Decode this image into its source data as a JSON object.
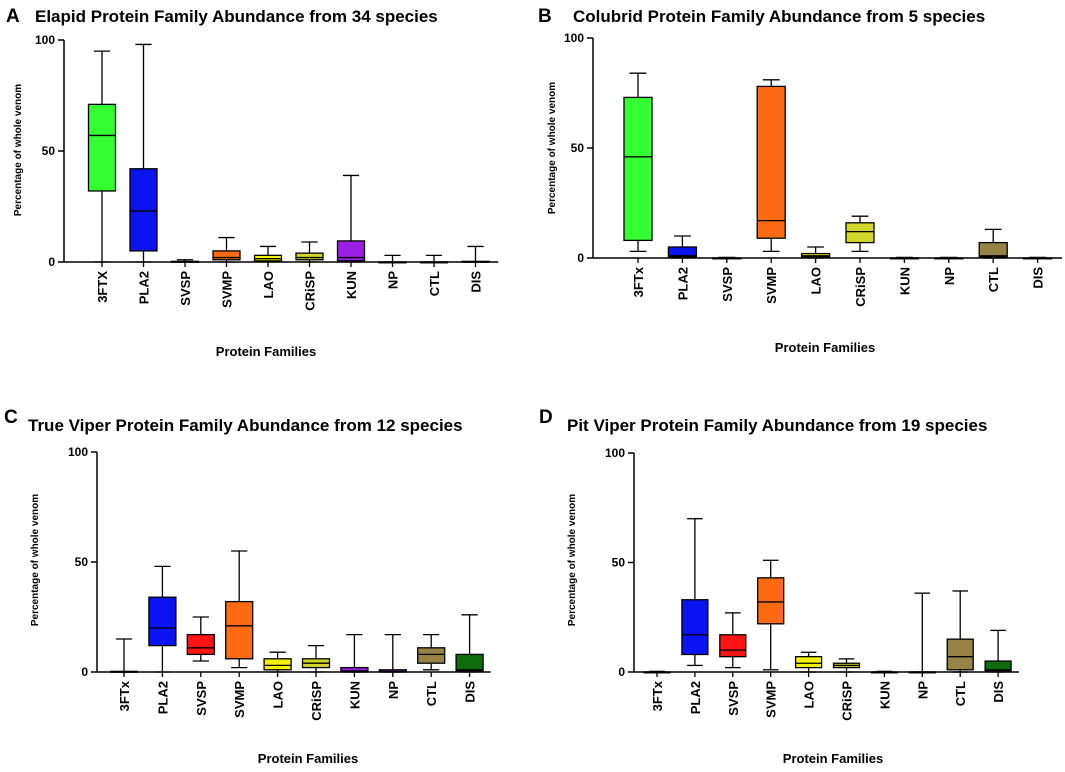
{
  "chart_data": [
    {
      "type": "box",
      "panel_letter": "A",
      "title": "Elapid Protein Family Abundance from 34 species",
      "xlabel": "Protein Families",
      "ylabel": "Percentage of whole venom",
      "ylim": [
        0,
        100
      ],
      "yticks": [
        0,
        50,
        100
      ],
      "categories": [
        "3FTX",
        "PLA2",
        "SVSP",
        "SVMP",
        "LAO",
        "CRiSP",
        "KUN",
        "NP",
        "CTL",
        "DIS"
      ],
      "colors": [
        "#33ff33",
        "#0a14f0",
        "#0a14f0",
        "#ff6a12",
        "#f4f20c",
        "#d2d62a",
        "#9b1fe2",
        "#9b1fe2",
        "#968447",
        "#0d6b0d"
      ],
      "boxes": [
        {
          "min": 0,
          "q1": 32,
          "median": 57,
          "q3": 71,
          "max": 95
        },
        {
          "min": 0,
          "q1": 5,
          "median": 23,
          "q3": 42,
          "max": 98
        },
        {
          "min": 0,
          "q1": 0,
          "median": 0,
          "q3": 0.3,
          "max": 1
        },
        {
          "min": 0,
          "q1": 1,
          "median": 2,
          "q3": 5,
          "max": 11
        },
        {
          "min": 0,
          "q1": 0.5,
          "median": 1.5,
          "q3": 3,
          "max": 7
        },
        {
          "min": 0,
          "q1": 1,
          "median": 2,
          "q3": 4,
          "max": 9
        },
        {
          "min": 0,
          "q1": 0.5,
          "median": 2,
          "q3": 9.5,
          "max": 39
        },
        {
          "min": 0,
          "q1": 0,
          "median": 0,
          "q3": 0,
          "max": 3
        },
        {
          "min": 0,
          "q1": 0,
          "median": 0,
          "q3": 0,
          "max": 3
        },
        {
          "min": 0,
          "q1": 0,
          "median": 0,
          "q3": 0.3,
          "max": 7
        }
      ]
    },
    {
      "type": "box",
      "panel_letter": "B",
      "title": "Colubrid Protein Family Abundance from 5 species",
      "xlabel": "Protein Families",
      "ylabel": "Percentage of whole venom",
      "ylim": [
        0,
        100
      ],
      "yticks": [
        0,
        50,
        100
      ],
      "categories": [
        "3FTx",
        "PLA2",
        "SVSP",
        "SVMP",
        "LAO",
        "CRiSP",
        "KUN",
        "NP",
        "CTL",
        "DIS"
      ],
      "colors": [
        "#33ff33",
        "#0a14f0",
        "#0a14f0",
        "#ff6a12",
        "#f4f20c",
        "#d2d62a",
        "#9b1fe2",
        "#9b1fe2",
        "#968447",
        "#0d6b0d"
      ],
      "boxes": [
        {
          "min": 3,
          "q1": 8,
          "median": 46,
          "q3": 73,
          "max": 84
        },
        {
          "min": 0,
          "q1": 0.5,
          "median": 1,
          "q3": 5,
          "max": 10
        },
        {
          "min": 0,
          "q1": 0,
          "median": 0,
          "q3": 0,
          "max": 0.3
        },
        {
          "min": 3,
          "q1": 9,
          "median": 17,
          "q3": 78,
          "max": 81
        },
        {
          "min": 0,
          "q1": 0.5,
          "median": 1,
          "q3": 2,
          "max": 5
        },
        {
          "min": 3,
          "q1": 7,
          "median": 12,
          "q3": 16,
          "max": 19
        },
        {
          "min": 0,
          "q1": 0,
          "median": 0,
          "q3": 0,
          "max": 0.3
        },
        {
          "min": 0,
          "q1": 0,
          "median": 0,
          "q3": 0,
          "max": 0.3
        },
        {
          "min": 0,
          "q1": 0.5,
          "median": 1,
          "q3": 7,
          "max": 13
        },
        {
          "min": 0,
          "q1": 0,
          "median": 0,
          "q3": 0,
          "max": 0.3
        }
      ]
    },
    {
      "type": "box",
      "panel_letter": "C",
      "title": "True Viper Protein Family Abundance from 12 species",
      "xlabel": "Protein Families",
      "ylabel": "Percentage of whole venom",
      "ylim": [
        0,
        100
      ],
      "yticks": [
        0,
        50,
        100
      ],
      "categories": [
        "3FTx",
        "PLA2",
        "SVSP",
        "SVMP",
        "LAO",
        "CRiSP",
        "KUN",
        "NP",
        "CTL",
        "DIS"
      ],
      "colors": [
        "#33ff33",
        "#0a14f0",
        "#ff1414",
        "#ff6a12",
        "#f4f20c",
        "#d2d62a",
        "#9b1fe2",
        "#9b1fe2",
        "#968447",
        "#0d6b0d"
      ],
      "boxes": [
        {
          "min": 0,
          "q1": 0,
          "median": 0,
          "q3": 0.3,
          "max": 15
        },
        {
          "min": 0,
          "q1": 12,
          "median": 20,
          "q3": 34,
          "max": 48
        },
        {
          "min": 5,
          "q1": 8,
          "median": 11,
          "q3": 17,
          "max": 25
        },
        {
          "min": 2,
          "q1": 6,
          "median": 21,
          "q3": 32,
          "max": 55
        },
        {
          "min": 0,
          "q1": 1,
          "median": 3,
          "q3": 6,
          "max": 9
        },
        {
          "min": 0,
          "q1": 2,
          "median": 4,
          "q3": 6,
          "max": 12
        },
        {
          "min": 0,
          "q1": 0,
          "median": 0.5,
          "q3": 2,
          "max": 17
        },
        {
          "min": 0,
          "q1": 0,
          "median": 0.3,
          "q3": 1,
          "max": 17
        },
        {
          "min": 1,
          "q1": 4,
          "median": 8,
          "q3": 11,
          "max": 17
        },
        {
          "min": 0,
          "q1": 0.5,
          "median": 1,
          "q3": 8,
          "max": 26
        }
      ]
    },
    {
      "type": "box",
      "panel_letter": "D",
      "title": "Pit Viper Protein Family Abundance from 19 species",
      "xlabel": "Protein Families",
      "ylabel": "Percentage of whole venom",
      "ylim": [
        0,
        100
      ],
      "yticks": [
        0,
        50,
        100
      ],
      "categories": [
        "3FTx",
        "PLA2",
        "SVSP",
        "SVMP",
        "LAO",
        "CRiSP",
        "KUN",
        "NP",
        "CTL",
        "DIS"
      ],
      "colors": [
        "#33ff33",
        "#0a14f0",
        "#ff1414",
        "#ff6a12",
        "#f4f20c",
        "#d2d62a",
        "#9b1fe2",
        "#9b1fe2",
        "#968447",
        "#0d6b0d"
      ],
      "boxes": [
        {
          "min": 0,
          "q1": 0,
          "median": 0,
          "q3": 0,
          "max": 0.3
        },
        {
          "min": 3,
          "q1": 8,
          "median": 17,
          "q3": 33,
          "max": 70
        },
        {
          "min": 2,
          "q1": 7,
          "median": 10,
          "q3": 17,
          "max": 27
        },
        {
          "min": 1,
          "q1": 22,
          "median": 32,
          "q3": 43,
          "max": 51
        },
        {
          "min": 0,
          "q1": 2,
          "median": 4,
          "q3": 7,
          "max": 9
        },
        {
          "min": 0,
          "q1": 2,
          "median": 3,
          "q3": 4,
          "max": 6
        },
        {
          "min": 0,
          "q1": 0,
          "median": 0,
          "q3": 0,
          "max": 0.3
        },
        {
          "min": 0,
          "q1": 0,
          "median": 0,
          "q3": 0,
          "max": 36
        },
        {
          "min": 0,
          "q1": 1,
          "median": 7,
          "q3": 15,
          "max": 37
        },
        {
          "min": 0,
          "q1": 0.5,
          "median": 1,
          "q3": 5,
          "max": 19
        }
      ]
    }
  ]
}
